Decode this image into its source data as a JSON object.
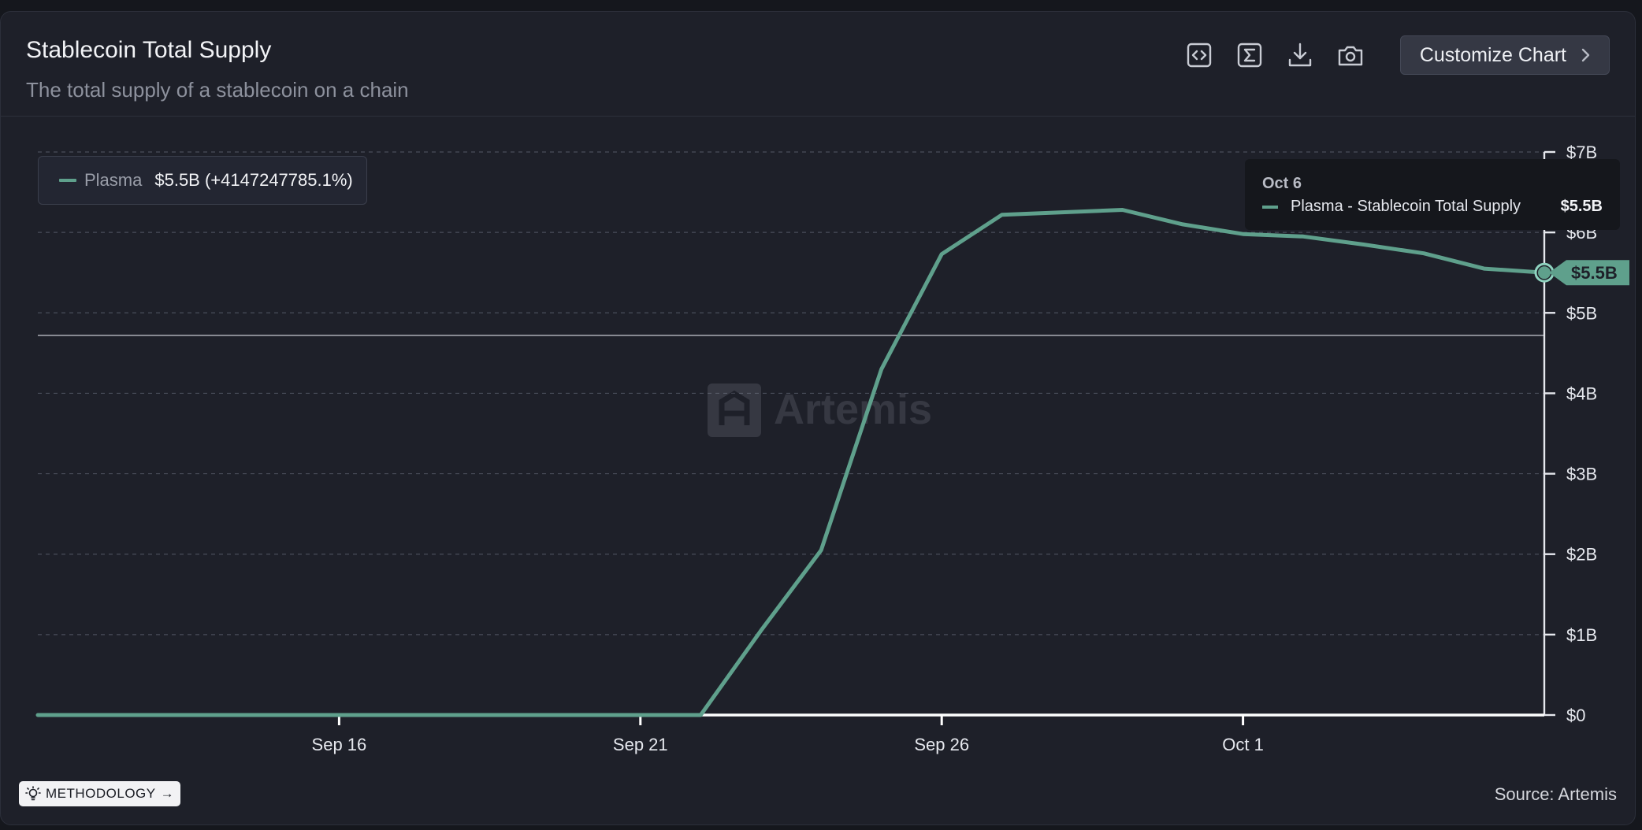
{
  "header": {
    "title": "Stablecoin Total Supply",
    "subtitle": "The total supply of a stablecoin on a chain",
    "customize_label": "Customize Chart"
  },
  "toolbar_icons": [
    "embed-code-icon",
    "sigma-icon",
    "download-icon",
    "camera-icon"
  ],
  "legend": {
    "series": "Plasma",
    "value": "$5.5B (+4147247785.1%)",
    "color": "#5fa08c"
  },
  "tooltip": {
    "date": "Oct 6",
    "series": "Plasma - Stablecoin Total Supply",
    "value": "$5.5B"
  },
  "last_value_label": "$5.5B",
  "watermark": "Artemis",
  "footer": {
    "methodology_label": "METHODOLOGY",
    "source": "Source: Artemis"
  },
  "chart_data": {
    "type": "line",
    "x": [
      "Sep 11",
      "Sep 12",
      "Sep 13",
      "Sep 14",
      "Sep 15",
      "Sep 16",
      "Sep 17",
      "Sep 18",
      "Sep 19",
      "Sep 20",
      "Sep 21",
      "Sep 22",
      "Sep 23",
      "Sep 24",
      "Sep 25",
      "Sep 26",
      "Sep 27",
      "Sep 28",
      "Sep 29",
      "Sep 30",
      "Oct 1",
      "Oct 2",
      "Oct 3",
      "Oct 4",
      "Oct 5",
      "Oct 6"
    ],
    "series": [
      {
        "name": "Plasma",
        "color": "#5fa08c",
        "values": [
          0,
          0,
          0,
          0,
          0,
          0,
          0,
          0,
          0,
          0,
          0,
          0,
          1.05,
          2.05,
          4.3,
          5.73,
          6.22,
          6.25,
          6.28,
          6.1,
          5.98,
          5.95,
          5.85,
          5.74,
          5.55,
          5.5
        ]
      }
    ],
    "x_tick_labels": [
      "Sep 16",
      "Sep 21",
      "Sep 26",
      "Oct 1"
    ],
    "x_tick_indices": [
      5,
      10,
      15,
      20
    ],
    "y_ticks": [
      0,
      1,
      2,
      3,
      4,
      5,
      6,
      7
    ],
    "y_tick_labels": [
      "$0",
      "$1B",
      "$2B",
      "$3B",
      "$4B",
      "$5B",
      "$6B",
      "$7B"
    ],
    "ylim": [
      0,
      7
    ],
    "crosshair_value": 4.72,
    "grid": true,
    "y_axis_side": "right"
  }
}
